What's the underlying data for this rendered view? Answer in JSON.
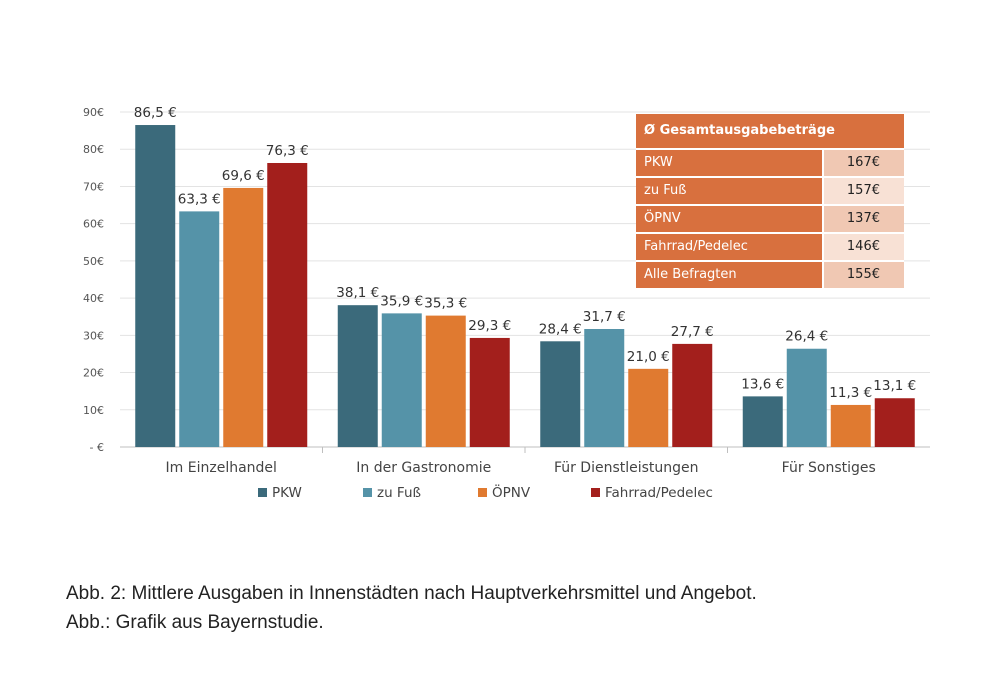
{
  "chart_data": {
    "type": "bar",
    "categories": [
      "Im Einzelhandel",
      "In der Gastronomie",
      "Für Dienstleistungen",
      "Für Sonstiges"
    ],
    "series": [
      {
        "name": "PKW",
        "color": "#3b6a7b",
        "values": [
          86.5,
          38.1,
          28.4,
          13.6
        ],
        "labels": [
          "86,5 €",
          "38,1 €",
          "28,4 €",
          "13,6 €"
        ]
      },
      {
        "name": "zu Fuß",
        "color": "#5593a8",
        "values": [
          63.3,
          35.9,
          31.7,
          26.4
        ],
        "labels": [
          "63,3 €",
          "35,9 €",
          "31,7 €",
          "26,4 €"
        ]
      },
      {
        "name": "ÖPNV",
        "color": "#e07a30",
        "values": [
          69.6,
          35.3,
          21.0,
          11.3
        ],
        "labels": [
          "69,6 €",
          "35,3 €",
          "21,0 €",
          "11,3 €"
        ]
      },
      {
        "name": "Fahrrad/Pedelec",
        "color": "#a31f1c",
        "values": [
          76.3,
          29.3,
          27.7,
          13.1
        ],
        "labels": [
          "76,3 €",
          "29,3 €",
          "27,7 €",
          "13,1 €"
        ]
      }
    ],
    "ylim": [
      0,
      90
    ],
    "y_ticks": [
      {
        "value": 0,
        "label": "-   €"
      },
      {
        "value": 10,
        "label": "10€"
      },
      {
        "value": 20,
        "label": "20€"
      },
      {
        "value": 30,
        "label": "30€"
      },
      {
        "value": 40,
        "label": "40€"
      },
      {
        "value": 50,
        "label": "50€"
      },
      {
        "value": 60,
        "label": "60€"
      },
      {
        "value": 70,
        "label": "70€"
      },
      {
        "value": 80,
        "label": "80€"
      },
      {
        "value": 90,
        "label": "90€"
      }
    ],
    "grid": true,
    "legend": "bottom",
    "summary_table": {
      "title": "Ø Gesamtausgabebeträge",
      "rows": [
        {
          "label": "PKW",
          "value": "167€"
        },
        {
          "label": "zu Fuß",
          "value": "157€"
        },
        {
          "label": "ÖPNV",
          "value": "137€"
        },
        {
          "label": "Fahrrad/Pedelec",
          "value": "146€"
        },
        {
          "label": "Alle Befragten",
          "value": "155€"
        }
      ]
    }
  },
  "caption": {
    "line1": "Abb. 2: Mittlere Ausgaben in Innenstädten nach Hauptverkehrsmittel und Angebot.",
    "line2": "Abb.: Grafik aus Bayernstudie."
  }
}
